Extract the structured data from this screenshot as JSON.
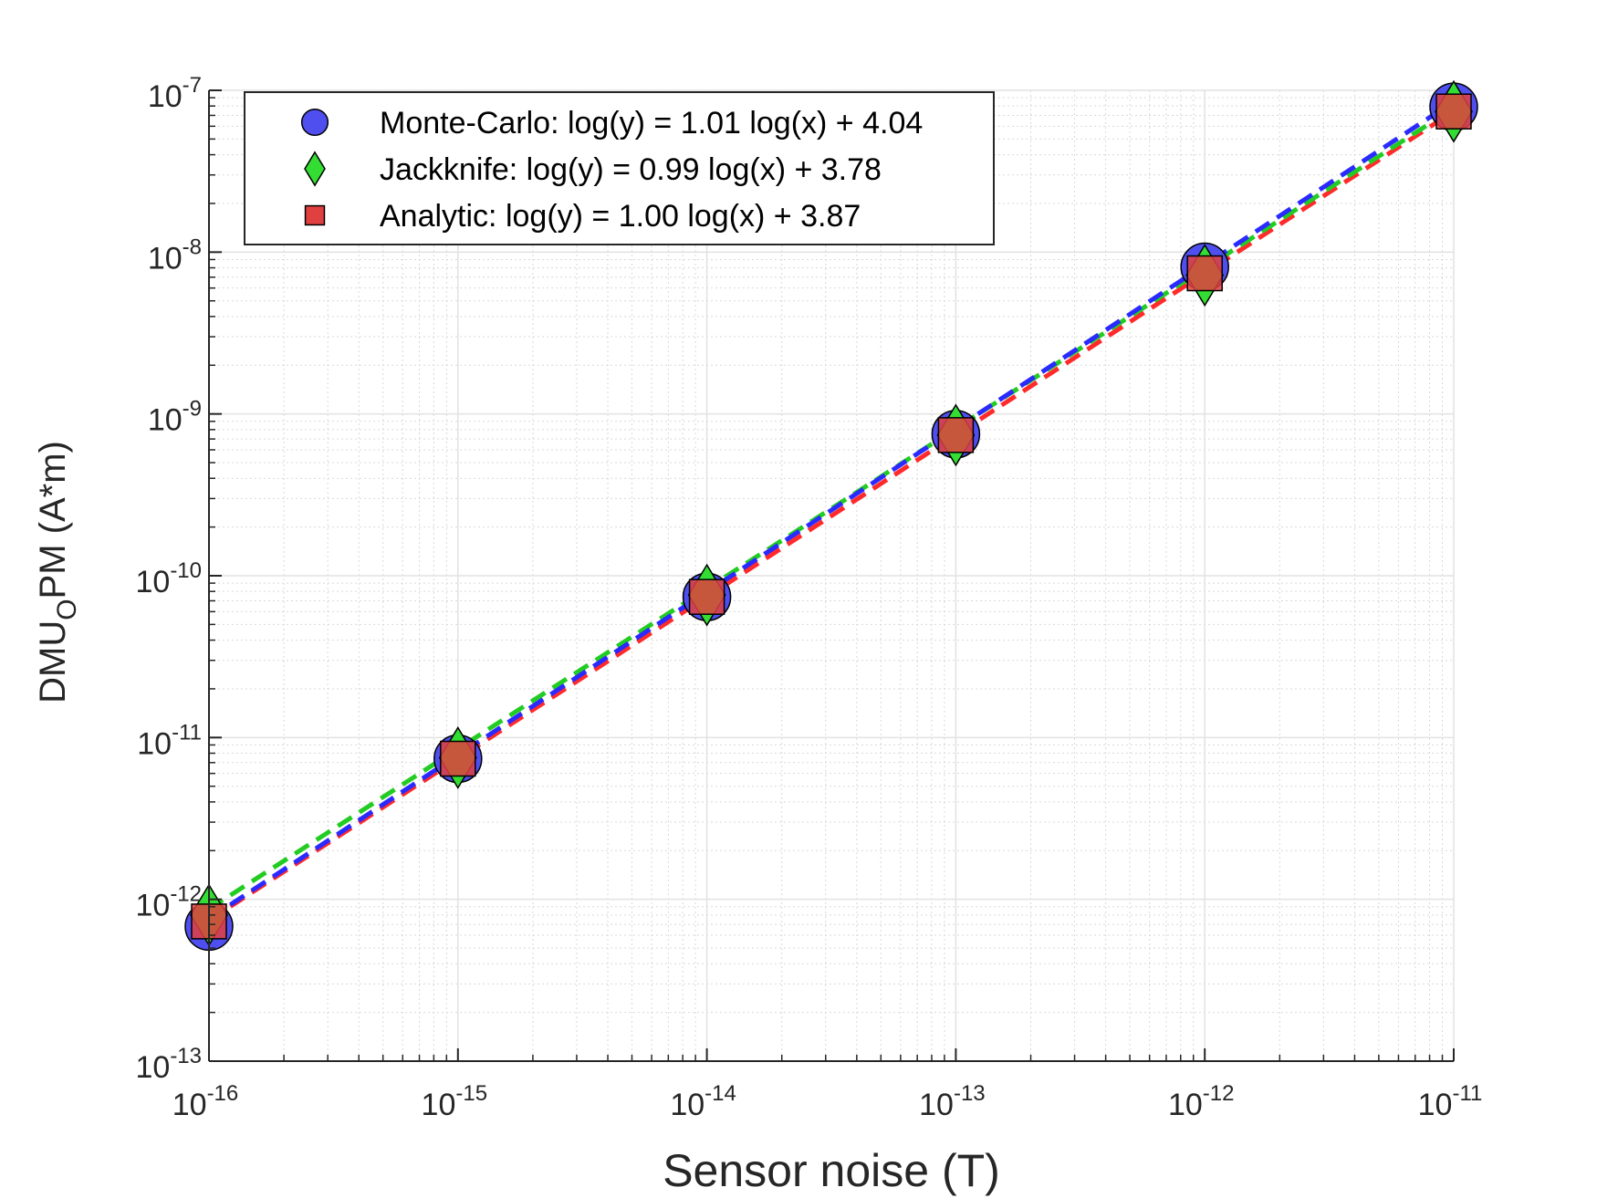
{
  "chart_data": {
    "type": "scatter",
    "x_scale": "log",
    "y_scale": "log",
    "xlim": [
      1e-16,
      1e-11
    ],
    "ylim": [
      1e-13,
      1e-07
    ],
    "grid": true,
    "minor_grid": true,
    "legend_position": "top-left",
    "xlabel": "Sensor noise (T)",
    "ylabel": {
      "main": "DMU",
      "sub": "O",
      "rest": "PM (A*m)"
    },
    "x_ticks": [
      {
        "base": "10",
        "exp": "-16"
      },
      {
        "base": "10",
        "exp": "-15"
      },
      {
        "base": "10",
        "exp": "-14"
      },
      {
        "base": "10",
        "exp": "-13"
      },
      {
        "base": "10",
        "exp": "-12"
      },
      {
        "base": "10",
        "exp": "-11"
      }
    ],
    "y_ticks": [
      {
        "base": "10",
        "exp": "-13"
      },
      {
        "base": "10",
        "exp": "-12"
      },
      {
        "base": "10",
        "exp": "-11"
      },
      {
        "base": "10",
        "exp": "-10"
      },
      {
        "base": "10",
        "exp": "-9"
      },
      {
        "base": "10",
        "exp": "-8"
      },
      {
        "base": "10",
        "exp": "-7"
      }
    ],
    "x": [
      1e-16,
      1e-15,
      1e-14,
      1e-13,
      1e-12,
      1e-11
    ],
    "series": [
      {
        "name": "Monte-Carlo: log(y) = 1.01 log(x) + 4.04",
        "marker": "circle",
        "color": "#4f4ff0",
        "line_color": "#2a2aff",
        "values": [
          6.8e-13,
          7.4e-12,
          7.4e-11,
          7.5e-10,
          8.1e-09,
          7.9e-08
        ],
        "fit": {
          "slope": 1.01,
          "intercept": 4.04
        }
      },
      {
        "name": "Jackknife: log(y) = 0.99 log(x) + 3.78",
        "marker": "diamond",
        "color": "#33dd33",
        "line_color": "#22cc22",
        "values": [
          8e-13,
          7.5e-12,
          7.6e-11,
          7.4e-10,
          7.2e-09,
          7.4e-08
        ],
        "fit": {
          "slope": 0.99,
          "intercept": 3.78
        }
      },
      {
        "name": "Analytic: log(y) = 1.00 log(x) + 3.87",
        "marker": "square",
        "color": "#e04040",
        "line_color": "#ff2a2a",
        "values": [
          7.3e-13,
          7.4e-12,
          7.4e-11,
          7.4e-10,
          7.4e-09,
          7.4e-08
        ],
        "fit": {
          "slope": 1.0,
          "intercept": 3.87
        }
      }
    ]
  }
}
